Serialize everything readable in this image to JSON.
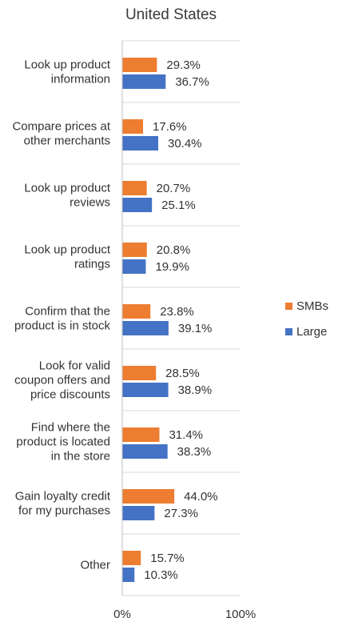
{
  "chart_data": {
    "type": "bar",
    "orientation": "horizontal",
    "title": "United States",
    "categories": [
      [
        "Look up product",
        "information"
      ],
      [
        "Compare prices at",
        "other merchants"
      ],
      [
        "Look up product",
        "reviews"
      ],
      [
        "Look up product",
        "ratings"
      ],
      [
        "Confirm that the",
        "product is in stock"
      ],
      [
        "Look for valid",
        "coupon offers and",
        "price discounts"
      ],
      [
        "Find where the",
        "product is located",
        "in the store"
      ],
      [
        "Gain loyalty credit",
        "for my purchases"
      ],
      [
        "Other"
      ]
    ],
    "series": [
      {
        "name": "SMBs",
        "color": "#ED7D31",
        "values": [
          29.3,
          17.6,
          20.7,
          20.8,
          23.8,
          28.5,
          31.4,
          44.0,
          15.7
        ],
        "labels": [
          "29.3%",
          "17.6%",
          "20.7%",
          "20.8%",
          "23.8%",
          "28.5%",
          "31.4%",
          "44.0%",
          "15.7%"
        ]
      },
      {
        "name": "Large",
        "color": "#4472C4",
        "values": [
          36.7,
          30.4,
          25.1,
          19.9,
          39.1,
          38.9,
          38.3,
          27.3,
          10.3
        ],
        "labels": [
          "36.7%",
          "30.4%",
          "25.1%",
          "19.9%",
          "39.1%",
          "38.9%",
          "38.3%",
          "27.3%",
          "10.3%"
        ]
      }
    ],
    "xlim": [
      0,
      100
    ],
    "xticks": [
      0,
      100
    ],
    "xtick_labels": [
      "0%",
      "100%"
    ],
    "xlabel": "",
    "ylabel": "",
    "grid": "horizontal separators between categories",
    "legend": "right"
  }
}
